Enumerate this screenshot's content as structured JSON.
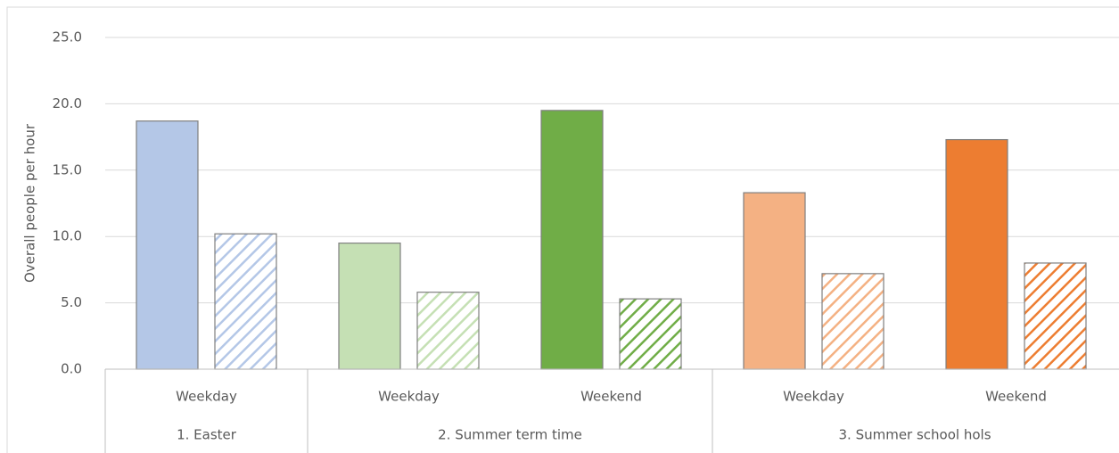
{
  "chart_data": {
    "type": "bar",
    "y_label": "Overall people per hour",
    "categories": [
      "Weekday",
      "Weekday",
      "Weekend",
      "Weekday",
      "Weekend"
    ],
    "groups": [
      {
        "label": "1. Easter",
        "size": 1
      },
      {
        "label": "2. Summer term time",
        "size": 2
      },
      {
        "label": "3. Summer school hols",
        "size": 2
      }
    ],
    "series": [
      {
        "pattern": "solid",
        "colors": [
          "#b4c7e7",
          "#c5e0b4",
          "#70ad47",
          "#f4b183",
          "#ed7d31"
        ],
        "values": [
          18.7,
          9.5,
          19.5,
          13.3,
          17.3
        ]
      },
      {
        "pattern": "hatched",
        "colors": [
          "#b4c7e7",
          "#c5e0b4",
          "#70ad47",
          "#f4b183",
          "#ed7d31"
        ],
        "values": [
          10.2,
          5.8,
          5.3,
          7.2,
          8.0
        ]
      }
    ],
    "ylim": [
      0,
      25
    ],
    "yticks": [
      {
        "value": 0,
        "label": "0.0"
      },
      {
        "value": 5,
        "label": "5.0"
      },
      {
        "value": 10,
        "label": "10.0"
      },
      {
        "value": 15,
        "label": "15.0"
      },
      {
        "value": 20,
        "label": "20.0"
      },
      {
        "value": 25,
        "label": "25.0"
      }
    ],
    "grid": true
  }
}
